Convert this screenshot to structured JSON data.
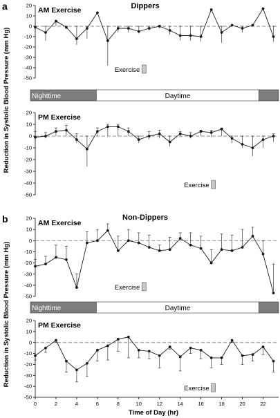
{
  "figure": {
    "panel_labels": [
      "a",
      "b"
    ],
    "ylabel": "Reduction in Systolic Blood Pressure (mm Hg)",
    "xlabel": "Time of Day (hr)",
    "x_ticks": [
      "0",
      "2",
      "4",
      "6",
      "8",
      "10",
      "12",
      "14",
      "16",
      "18",
      "20",
      "22"
    ],
    "exercise_label": "Exercise",
    "band": {
      "night_label": "Nighttime",
      "day_label": "Daytime"
    },
    "colors": {
      "line": "#1a1a1a",
      "axis": "#000000",
      "ref_dash": "#8a8a8a",
      "night": "#7d7d7d",
      "exercise_bar": "#c8c8c8"
    }
  },
  "chart_data": [
    {
      "type": "line",
      "group": "Dippers",
      "title": "AM Exercise",
      "ylim": [
        -50,
        20
      ],
      "yticks": [
        "20",
        "10",
        "0",
        "-10",
        "-20",
        "-30",
        "-40",
        "-50"
      ],
      "exercise_hour": 10.5,
      "x": [
        0,
        1,
        2,
        3,
        4,
        5,
        6,
        7,
        8,
        9,
        10,
        11,
        12,
        13,
        14,
        15,
        16,
        17,
        18,
        19,
        20,
        21,
        22,
        23
      ],
      "values": [
        -1,
        -6,
        5,
        -1,
        -12,
        -2,
        13,
        -14,
        -2,
        -2,
        -5,
        -2,
        0,
        -4,
        -9,
        -9,
        -10,
        16,
        -6,
        1,
        -2,
        1,
        17,
        -10
      ],
      "error_up": [
        0,
        0,
        4,
        0,
        0,
        0,
        0,
        0,
        0,
        0,
        0,
        0,
        1,
        0,
        0,
        0,
        0,
        0,
        0,
        0,
        0,
        0,
        0,
        0
      ],
      "error_down": [
        -6,
        -14,
        0,
        -3,
        -18,
        -12,
        0,
        -38,
        -6,
        -6,
        -7,
        -4,
        -2,
        -8,
        -14,
        -14,
        -15,
        0,
        -16,
        0,
        -6,
        0,
        0,
        -15
      ]
    },
    {
      "type": "line",
      "group": "Dippers",
      "title": "PM Exercise",
      "ylim": [
        -50,
        20
      ],
      "yticks": [
        "20",
        "10",
        "0",
        "-10",
        "-20",
        "-30",
        "-40",
        "-50"
      ],
      "exercise_hour": 17.2,
      "x": [
        0,
        1,
        2,
        3,
        4,
        5,
        6,
        7,
        8,
        9,
        10,
        11,
        12,
        13,
        14,
        15,
        16,
        17,
        18,
        19,
        20,
        21,
        22,
        23
      ],
      "values": [
        -1,
        0,
        4,
        5,
        -3,
        -11,
        4,
        8,
        8,
        4,
        -3,
        0,
        2,
        -5,
        2,
        0,
        4,
        3,
        6,
        -2,
        -7,
        -10,
        -3,
        0
      ],
      "error_up": [
        4,
        3,
        7,
        9,
        2,
        0,
        7,
        10,
        10,
        7,
        0,
        4,
        5,
        0,
        4,
        3,
        5,
        5,
        7,
        0,
        0,
        0,
        0,
        2
      ],
      "error_down": [
        -4,
        -2,
        0,
        0,
        -6,
        -26,
        0,
        0,
        0,
        0,
        -6,
        -3,
        -2,
        -9,
        0,
        -2,
        0,
        -1,
        0,
        -6,
        -10,
        -17,
        -10,
        -5
      ]
    },
    {
      "type": "line",
      "group": "Non-Dippers",
      "title": "AM Exercise",
      "ylim": [
        -50,
        20
      ],
      "yticks": [
        "20",
        "10",
        "0",
        "-10",
        "-20",
        "-30",
        "-40",
        "-50"
      ],
      "exercise_hour": 10.5,
      "x": [
        0,
        1,
        2,
        3,
        4,
        5,
        6,
        7,
        8,
        9,
        10,
        11,
        12,
        13,
        14,
        15,
        16,
        17,
        18,
        19,
        20,
        21,
        22,
        23
      ],
      "values": [
        -23,
        -21,
        -15,
        -17,
        -42,
        -2,
        0,
        9,
        -9,
        0,
        -2,
        -6,
        -9,
        -8,
        2,
        -4,
        -7,
        -20,
        -8,
        -9,
        -6,
        4,
        -12,
        -47
      ],
      "error_up": [
        -17,
        -14,
        -4,
        -5,
        -30,
        8,
        10,
        15,
        4,
        10,
        7,
        5,
        -4,
        3,
        7,
        7,
        4,
        -8,
        6,
        5,
        10,
        12,
        0,
        -21
      ],
      "error_down": [
        -23,
        -21,
        -15,
        -17,
        -42,
        -2,
        0,
        9,
        -9,
        0,
        -2,
        -6,
        -9,
        -8,
        2,
        -4,
        -7,
        -20,
        -8,
        -9,
        -6,
        4,
        -12,
        -47
      ]
    },
    {
      "type": "line",
      "group": "Non-Dippers",
      "title": "PM Exercise",
      "ylim": [
        -50,
        20
      ],
      "yticks": [
        "20",
        "10",
        "0",
        "-10",
        "-20",
        "-30",
        "-40",
        "-50"
      ],
      "exercise_hour": 17.2,
      "x": [
        0,
        1,
        2,
        3,
        4,
        5,
        6,
        7,
        8,
        9,
        10,
        11,
        12,
        13,
        14,
        15,
        16,
        17,
        18,
        19,
        20,
        21,
        22,
        23
      ],
      "values": [
        -12,
        -5,
        2,
        -17,
        -25,
        -19,
        -7,
        -3,
        3,
        5,
        -7,
        -8,
        -12,
        -4,
        -13,
        -5,
        -7,
        -14,
        -14,
        2,
        -12,
        -11,
        -4,
        -17
      ],
      "error_up": [
        -12,
        -5,
        2,
        -17,
        -25,
        -19,
        -7,
        -3,
        3,
        5,
        -7,
        -8,
        -12,
        -4,
        -13,
        -5,
        -7,
        -14,
        -14,
        2,
        -12,
        -11,
        -4,
        -17
      ],
      "error_down": [
        -16,
        -9,
        0,
        -27,
        -36,
        -31,
        -17,
        -16,
        -8,
        -14,
        -14,
        -15,
        -23,
        -6,
        -26,
        -10,
        -15,
        -23,
        -20,
        0,
        -20,
        -17,
        -11,
        -27
      ]
    }
  ]
}
